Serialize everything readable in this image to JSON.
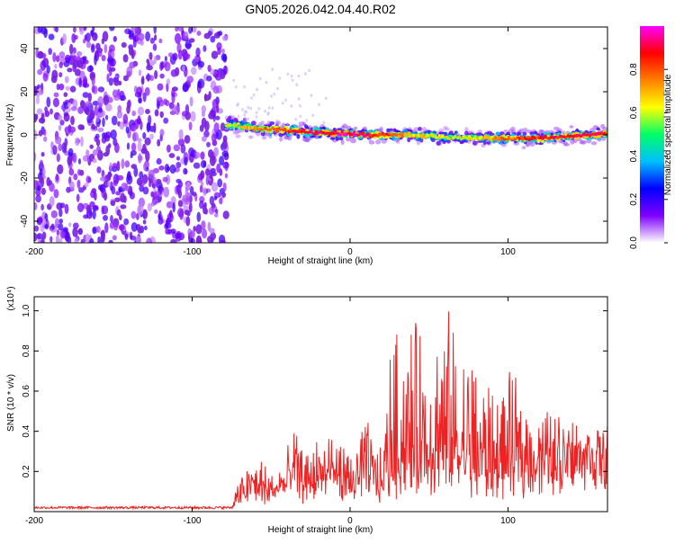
{
  "title": "GN05.2026.042.04.40.R02",
  "chart_data": [
    {
      "type": "heatmap",
      "xlabel": "Height of straight line (km)",
      "ylabel": "Frequency (Hz)",
      "xlim": [
        -200,
        163
      ],
      "ylim": [
        -50,
        50
      ],
      "x_ticks": [
        -200,
        -100,
        0,
        100
      ],
      "y_ticks": [
        -40,
        -20,
        0,
        20,
        40
      ],
      "colorbar": {
        "label": "Normalized spectral amplitude",
        "range": [
          0,
          1
        ],
        "ticks": [
          "0.0",
          "0.2",
          "0.4",
          "0.6",
          "0.8"
        ],
        "colormap": [
          "#ffffff",
          "#8000ff",
          "#0000ff",
          "#00bfff",
          "#00ff66",
          "#ffff00",
          "#ff8000",
          "#ff0000",
          "#ff00ff"
        ]
      },
      "noise_region": {
        "x_range": [
          -200,
          -78
        ],
        "freq_range": [
          -50,
          50
        ],
        "amplitude": [
          0.05,
          0.2
        ]
      },
      "signal_ridge": {
        "x": [
          -78,
          -60,
          -40,
          -20,
          0,
          20,
          40,
          60,
          80,
          100,
          120,
          140,
          163
        ],
        "frequency": [
          5,
          3,
          2,
          1,
          0.5,
          0,
          0,
          -1,
          -1.5,
          -1.5,
          -1.5,
          -0.5,
          0.5
        ],
        "peak_amplitude": [
          0.6,
          0.7,
          0.85,
          0.9,
          0.95,
          0.85,
          0.7,
          0.6,
          0.65,
          0.8,
          0.85,
          0.9,
          0.9
        ]
      }
    },
    {
      "type": "line",
      "xlabel": "Height of straight line (km)",
      "ylabel": "SNR (10 * v/v)",
      "scale_label": "(x10⁴)",
      "xlim": [
        -200,
        163
      ],
      "ylim": [
        0,
        1.07
      ],
      "x_ticks": [
        -200,
        -100,
        0,
        100
      ],
      "y_ticks": [
        0.2,
        0.4,
        0.6,
        0.8,
        1.0
      ],
      "color": "#ee2222",
      "series": [
        {
          "x": [
            -200,
            -75,
            -72,
            -60,
            -50,
            -40,
            -35,
            -30,
            -20,
            -10,
            0,
            10,
            15,
            20,
            25,
            30,
            40,
            50,
            60,
            70,
            80,
            90,
            100,
            110,
            120,
            130,
            140,
            150,
            163
          ],
          "baseline": [
            0.02,
            0.02,
            0.05,
            0.12,
            0.08,
            0.15,
            0.18,
            0.12,
            0.15,
            0.18,
            0.12,
            0.2,
            0.15,
            0.12,
            0.18,
            0.2,
            0.22,
            0.2,
            0.2,
            0.2,
            0.18,
            0.16,
            0.18,
            0.2,
            0.24,
            0.26,
            0.3,
            0.33,
            0.34
          ],
          "peak": [
            0.04,
            0.04,
            0.15,
            0.3,
            0.22,
            0.28,
            0.45,
            0.3,
            0.38,
            0.42,
            0.28,
            0.48,
            0.38,
            0.3,
            0.82,
            0.92,
            0.96,
            0.93,
            1.05,
            0.88,
            0.8,
            0.62,
            0.7,
            0.6,
            0.55,
            0.5,
            0.48,
            0.4,
            0.37
          ]
        }
      ]
    }
  ]
}
